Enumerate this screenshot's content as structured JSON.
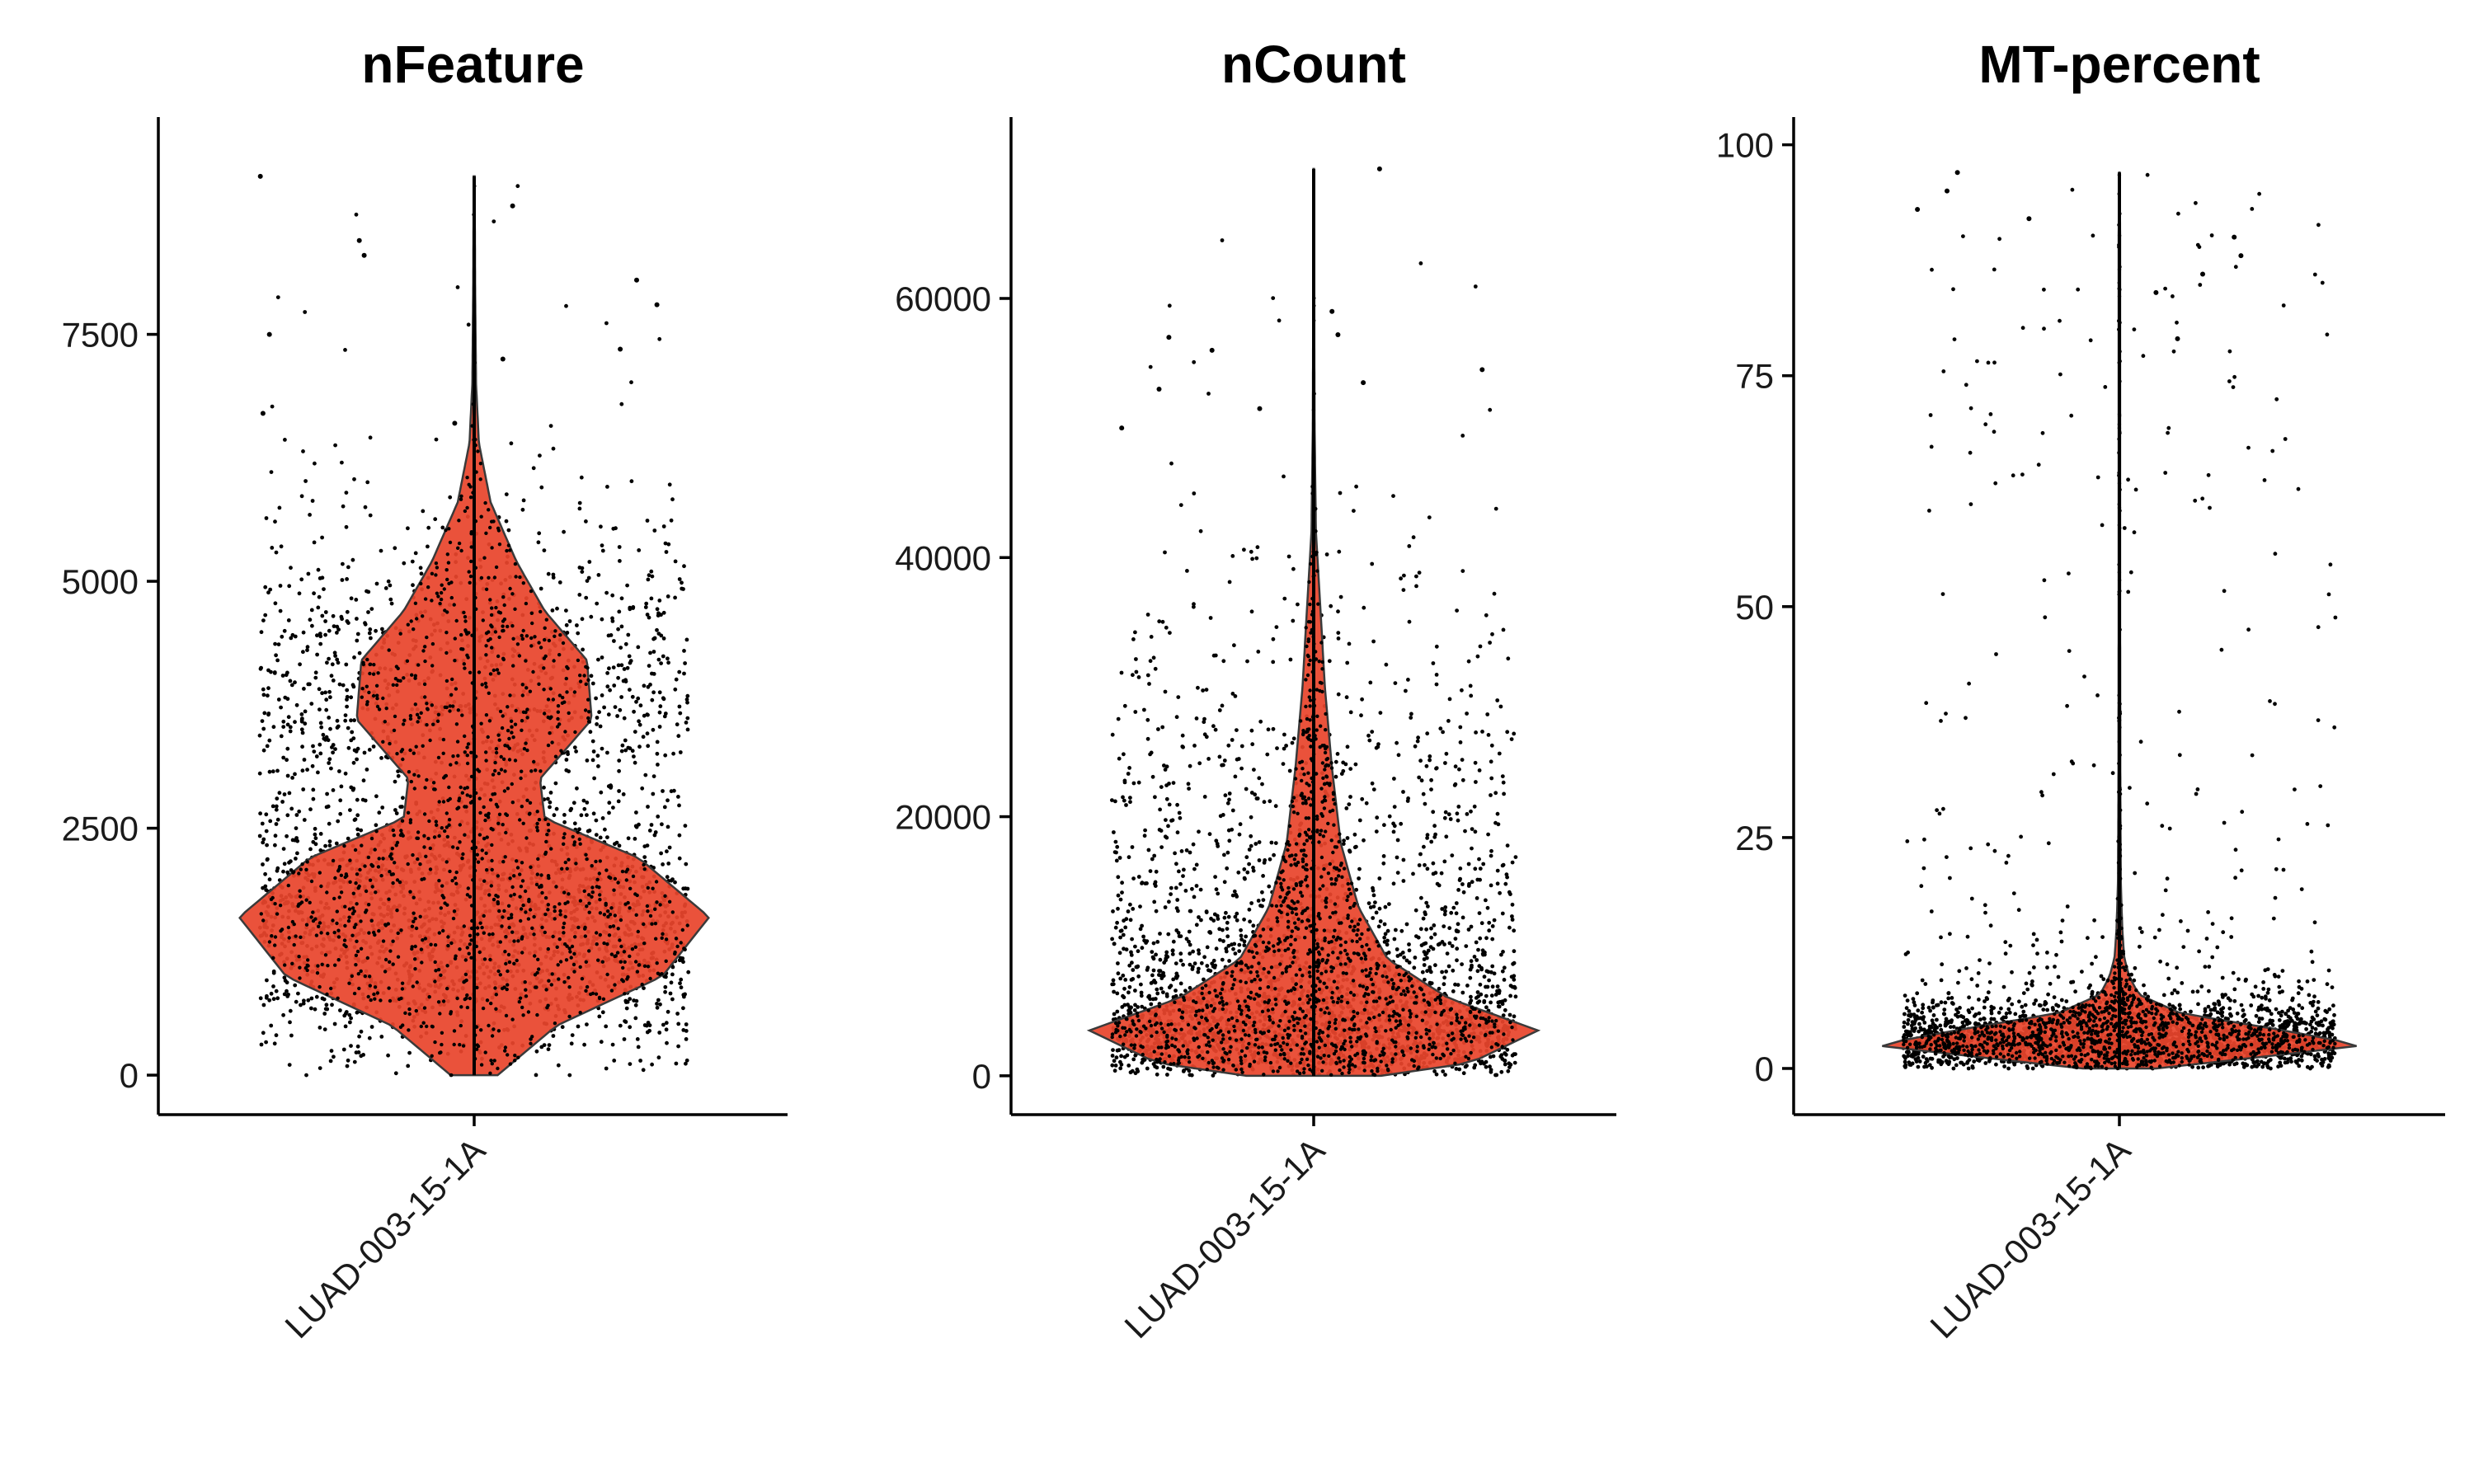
{
  "chart_data": [
    {
      "type": "violin",
      "title": "nFeature",
      "categories": [
        "LUAD-003-15-1A"
      ],
      "yticks": [
        0,
        2500,
        5000,
        7500
      ],
      "ylim": [
        -400,
        9700
      ],
      "fill_color": "#E8452C",
      "point_color": "#000000",
      "distribution": {
        "min": 0,
        "max": 9100,
        "density_profile": [
          [
            0,
            0.1
          ],
          [
            500,
            0.35
          ],
          [
            1000,
            0.8
          ],
          [
            1600,
            1.0
          ],
          [
            2200,
            0.7
          ],
          [
            2600,
            0.3
          ],
          [
            3000,
            0.28
          ],
          [
            3600,
            0.5
          ],
          [
            4200,
            0.48
          ],
          [
            4700,
            0.3
          ],
          [
            5200,
            0.18
          ],
          [
            5800,
            0.07
          ],
          [
            6400,
            0.02
          ],
          [
            7000,
            0.008
          ],
          [
            8000,
            0.004
          ],
          [
            9100,
            0.002
          ]
        ]
      },
      "outliers": [
        8300,
        8450,
        8800,
        9100,
        7800,
        8050,
        7500,
        7350,
        7250,
        6700,
        6600
      ]
    },
    {
      "type": "violin",
      "title": "nCount",
      "categories": [
        "LUAD-003-15-1A"
      ],
      "yticks": [
        0,
        20000,
        40000,
        60000
      ],
      "ylim": [
        -3000,
        74000
      ],
      "fill_color": "#E8452C",
      "point_color": "#000000",
      "distribution": {
        "min": 0,
        "max": 70000,
        "density_profile": [
          [
            0,
            0.3
          ],
          [
            1000,
            0.7
          ],
          [
            3500,
            1.0
          ],
          [
            6000,
            0.6
          ],
          [
            9000,
            0.33
          ],
          [
            13000,
            0.2
          ],
          [
            18000,
            0.12
          ],
          [
            24000,
            0.08
          ],
          [
            30000,
            0.05
          ],
          [
            36000,
            0.03
          ],
          [
            42000,
            0.01
          ],
          [
            50000,
            0.004
          ],
          [
            60000,
            0.002
          ],
          [
            70000,
            0.001
          ]
        ]
      },
      "outliers": [
        70000,
        59000,
        57000,
        57200,
        56000,
        54500,
        53500,
        53000,
        51500,
        50000
      ]
    },
    {
      "type": "violin",
      "title": "MT-percent",
      "categories": [
        "LUAD-003-15-1A"
      ],
      "yticks": [
        0,
        25,
        50,
        75,
        100
      ],
      "ylim": [
        -5,
        103
      ],
      "fill_color": "#E8452C",
      "point_color": "#000000",
      "distribution": {
        "min": 0,
        "max": 97,
        "density_profile": [
          [
            0,
            0.15
          ],
          [
            1,
            0.5
          ],
          [
            2.5,
            1.0
          ],
          [
            4,
            0.7
          ],
          [
            6,
            0.25
          ],
          [
            8,
            0.08
          ],
          [
            10,
            0.04
          ],
          [
            12,
            0.02
          ],
          [
            15,
            0.012
          ],
          [
            20,
            0.006
          ],
          [
            30,
            0.004
          ],
          [
            50,
            0.003
          ],
          [
            70,
            0.003
          ],
          [
            90,
            0.003
          ],
          [
            97,
            0.001
          ]
        ]
      },
      "outliers": [
        97,
        95,
        93,
        92,
        90,
        88,
        86,
        84,
        79
      ]
    }
  ]
}
